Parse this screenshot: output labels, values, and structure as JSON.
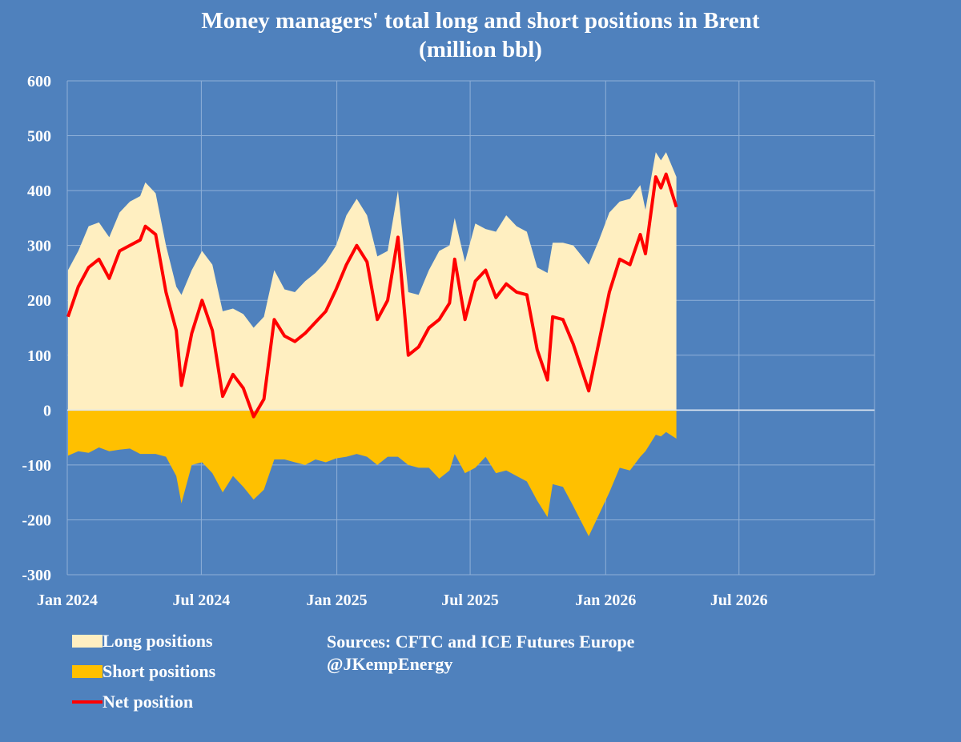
{
  "chart_data": {
    "type": "area",
    "title": "Money managers' total long and short positions in Brent",
    "subtitle": "(million bbl)",
    "ylim": [
      -300,
      600
    ],
    "yticks": [
      600,
      500,
      400,
      300,
      200,
      100,
      0,
      -100,
      -200,
      -300
    ],
    "xlim": [
      "2024-01-01",
      "2027-01-01"
    ],
    "xticks": [
      {
        "date": "2024-01-01",
        "label": "Jan 2024"
      },
      {
        "date": "2024-07-01",
        "label": "Jul 2024"
      },
      {
        "date": "2025-01-01",
        "label": "Jan 2025"
      },
      {
        "date": "2025-07-01",
        "label": "Jul 2025"
      },
      {
        "date": "2026-01-01",
        "label": "Jan 2026"
      },
      {
        "date": "2026-07-01",
        "label": "Jul 2026"
      }
    ],
    "grid": true,
    "legend_position": "bottom-left",
    "x": [
      "2024-01-02",
      "2024-01-16",
      "2024-01-30",
      "2024-02-13",
      "2024-02-27",
      "2024-03-12",
      "2024-03-26",
      "2024-04-09",
      "2024-04-16",
      "2024-04-30",
      "2024-05-14",
      "2024-05-28",
      "2024-06-04",
      "2024-06-18",
      "2024-07-02",
      "2024-07-16",
      "2024-07-30",
      "2024-08-13",
      "2024-08-27",
      "2024-09-10",
      "2024-09-24",
      "2024-10-08",
      "2024-10-22",
      "2024-11-05",
      "2024-11-19",
      "2024-12-03",
      "2024-12-17",
      "2024-12-31",
      "2025-01-14",
      "2025-01-28",
      "2025-02-11",
      "2025-02-25",
      "2025-03-11",
      "2025-03-25",
      "2025-04-08",
      "2025-04-22",
      "2025-05-06",
      "2025-05-20",
      "2025-06-03",
      "2025-06-10",
      "2025-06-24",
      "2025-07-08",
      "2025-07-22",
      "2025-08-05",
      "2025-08-19",
      "2025-09-02",
      "2025-09-16",
      "2025-09-30",
      "2025-10-14",
      "2025-10-21",
      "2025-11-04",
      "2025-11-18",
      "2025-12-09",
      "2025-12-23",
      "2026-01-06",
      "2026-01-20",
      "2026-02-03",
      "2026-02-17",
      "2026-02-24",
      "2026-03-10",
      "2026-03-17",
      "2026-03-24",
      "2026-04-07"
    ],
    "series": [
      {
        "name": "Long positions",
        "color": "#FFEFC1",
        "values": [
          255,
          290,
          335,
          342,
          315,
          360,
          380,
          390,
          415,
          395,
          300,
          225,
          210,
          255,
          290,
          265,
          180,
          185,
          175,
          150,
          170,
          255,
          220,
          215,
          235,
          250,
          270,
          300,
          355,
          385,
          355,
          280,
          290,
          400,
          215,
          210,
          255,
          290,
          300,
          350,
          270,
          340,
          330,
          325,
          355,
          335,
          325,
          260,
          250,
          305,
          305,
          300,
          265,
          310,
          360,
          380,
          385,
          410,
          365,
          470,
          455,
          470,
          425
        ]
      },
      {
        "name": "Short positions",
        "color": "#FFC000",
        "values": [
          -83,
          -75,
          -78,
          -68,
          -75,
          -72,
          -70,
          -80,
          -80,
          -80,
          -85,
          -120,
          -170,
          -100,
          -95,
          -115,
          -150,
          -120,
          -140,
          -163,
          -145,
          -90,
          -90,
          -95,
          -100,
          -90,
          -95,
          -88,
          -85,
          -80,
          -85,
          -100,
          -85,
          -85,
          -100,
          -105,
          -105,
          -125,
          -110,
          -80,
          -115,
          -105,
          -85,
          -115,
          -110,
          -120,
          -130,
          -165,
          -195,
          -135,
          -140,
          -175,
          -230,
          -190,
          -150,
          -105,
          -110,
          -85,
          -75,
          -45,
          -48,
          -40,
          -52
        ]
      },
      {
        "name": "Net position",
        "color": "#FF0000",
        "values": [
          170,
          225,
          260,
          275,
          240,
          290,
          300,
          310,
          335,
          320,
          215,
          145,
          45,
          140,
          200,
          145,
          25,
          65,
          40,
          -12,
          20,
          165,
          135,
          125,
          140,
          160,
          180,
          220,
          265,
          300,
          270,
          165,
          200,
          315,
          100,
          115,
          150,
          165,
          195,
          275,
          165,
          235,
          255,
          205,
          230,
          215,
          210,
          110,
          55,
          170,
          165,
          120,
          35,
          125,
          215,
          275,
          265,
          320,
          285,
          425,
          405,
          430,
          370
        ]
      }
    ],
    "annotations": [
      "Sources: CFTC and ICE Futures Europe",
      "@JKempEnergy"
    ]
  }
}
